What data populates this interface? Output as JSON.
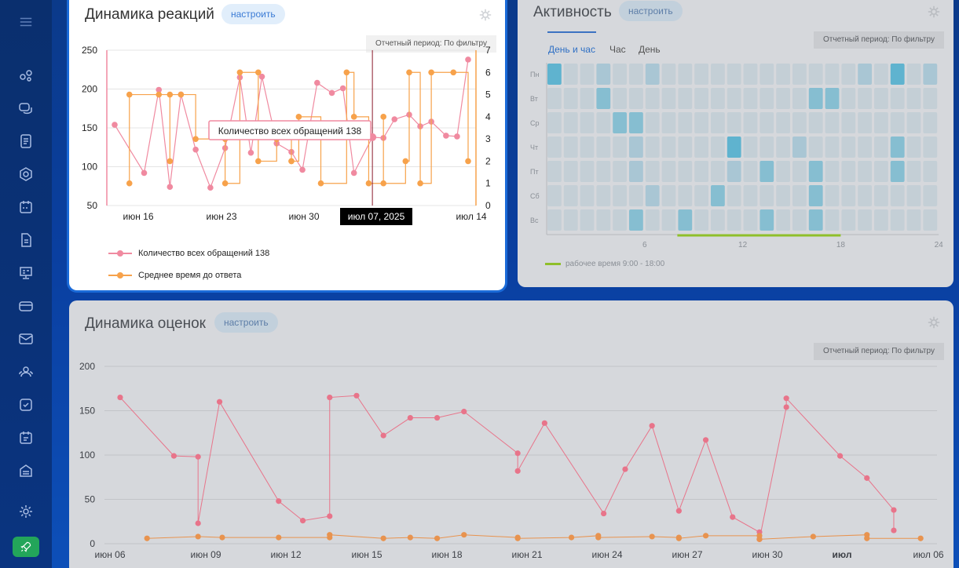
{
  "sidebar": {
    "items": [
      {
        "icon": "menu-icon"
      },
      {
        "icon": "pipeline-icon"
      },
      {
        "icon": "chat-icon"
      },
      {
        "icon": "document-icon"
      },
      {
        "icon": "hexagon-icon"
      },
      {
        "icon": "calendar-icon"
      },
      {
        "icon": "file-icon"
      },
      {
        "icon": "presentation-icon"
      },
      {
        "icon": "card-icon"
      },
      {
        "icon": "mail-icon"
      },
      {
        "icon": "users-icon"
      },
      {
        "icon": "checkbox-icon"
      },
      {
        "icon": "schedule-icon"
      },
      {
        "icon": "warehouse-icon"
      },
      {
        "icon": "settings-icon"
      },
      {
        "icon": "rocket-icon"
      }
    ]
  },
  "reactions": {
    "title": "Динамика реакций",
    "config_label": "настроить",
    "period_label": "Отчетный период: По фильтру",
    "tooltip_text": "Количество всех обращений 138",
    "cursor_label": "июл 07, 2025",
    "legend": [
      "Количество всех обращений  138",
      "Среднее время до ответа"
    ],
    "colors": {
      "count": "#f08aa0",
      "avg": "#f7a24b"
    },
    "chart_data": {
      "type": "line",
      "x_labels": [
        "июн 16",
        "июн 23",
        "июн 30",
        "июл 14"
      ],
      "y_left": {
        "ticks": [
          50,
          100,
          150,
          200,
          250
        ],
        "range": [
          50,
          250
        ]
      },
      "y_right": {
        "ticks": [
          0,
          1,
          2,
          3,
          4,
          5,
          6,
          7
        ],
        "range": [
          0,
          7
        ]
      },
      "series": [
        {
          "name": "Количество всех обращений  138",
          "axis": "left",
          "points": [
            [
              0,
              154
            ],
            [
              0.8,
              92
            ],
            [
              1.2,
              199
            ],
            [
              1.5,
              74
            ],
            [
              1.8,
              193
            ],
            [
              2.2,
              122
            ],
            [
              2.6,
              73
            ],
            [
              3.0,
              124
            ],
            [
              3.4,
              215
            ],
            [
              3.7,
              118
            ],
            [
              4.0,
              216
            ],
            [
              4.4,
              130
            ],
            [
              4.8,
              119
            ],
            [
              5.1,
              96
            ],
            [
              5.5,
              208
            ],
            [
              5.9,
              195
            ],
            [
              6.2,
              201
            ],
            [
              6.5,
              92
            ],
            [
              7.0,
              138
            ],
            [
              7.3,
              137
            ],
            [
              7.6,
              161
            ],
            [
              8.0,
              167
            ],
            [
              8.3,
              152
            ],
            [
              8.6,
              158
            ],
            [
              9.0,
              140
            ],
            [
              9.3,
              139
            ],
            [
              9.6,
              238
            ]
          ]
        },
        {
          "name": "Среднее время до ответа",
          "axis": "right",
          "points": [
            [
              0.4,
              1
            ],
            [
              0.4,
              5
            ],
            [
              1.2,
              5
            ],
            [
              1.5,
              2
            ],
            [
              1.5,
              5
            ],
            [
              1.8,
              5
            ],
            [
              2.2,
              3
            ],
            [
              3.0,
              3
            ],
            [
              3.0,
              1
            ],
            [
              3.4,
              6
            ],
            [
              3.9,
              6
            ],
            [
              3.9,
              2
            ],
            [
              4.4,
              3
            ],
            [
              4.8,
              2
            ],
            [
              4.8,
              2
            ],
            [
              5.0,
              4
            ],
            [
              5.6,
              1
            ],
            [
              6.3,
              6
            ],
            [
              6.5,
              4
            ],
            [
              6.9,
              1
            ],
            [
              7.3,
              4
            ],
            [
              7.3,
              1
            ],
            [
              7.9,
              2
            ],
            [
              8.0,
              6
            ],
            [
              8.3,
              1
            ],
            [
              8.6,
              6
            ],
            [
              9.2,
              6
            ],
            [
              9.6,
              2
            ]
          ]
        }
      ]
    }
  },
  "activity": {
    "title": "Активность",
    "config_label": "настроить",
    "period_label": "Отчетный период: По фильтру",
    "tabs": [
      "День и час",
      "Час",
      "День"
    ],
    "days": [
      "Пн",
      "Вт",
      "Ср",
      "Чт",
      "Пт",
      "Сб",
      "Вс"
    ],
    "x_ticks": [
      6,
      12,
      18,
      24
    ],
    "legend": "рабочее время 9:00 - 18:00",
    "chart_data": {
      "type": "heatmap",
      "rows": [
        "Пн",
        "Вт",
        "Ср",
        "Чт",
        "Пт",
        "Сб",
        "Вс"
      ],
      "columns": 24,
      "values": [
        [
          3,
          0,
          0,
          1,
          0,
          0,
          1,
          0,
          0,
          0,
          0,
          0,
          0,
          0,
          0,
          0,
          0,
          0,
          0,
          1,
          0,
          3,
          0,
          1
        ],
        [
          0,
          0,
          0,
          2,
          0,
          0,
          0,
          0,
          0,
          0,
          0,
          0,
          0,
          0,
          0,
          0,
          2,
          2,
          0,
          0,
          0,
          0,
          0,
          0
        ],
        [
          0,
          0,
          0,
          0,
          2,
          2,
          0,
          0,
          0,
          0,
          0,
          0,
          0,
          0,
          0,
          0,
          0,
          0,
          0,
          0,
          0,
          0,
          0,
          0
        ],
        [
          0,
          0,
          0,
          0,
          0,
          1,
          0,
          0,
          0,
          0,
          0,
          3,
          0,
          0,
          0,
          1,
          0,
          0,
          0,
          0,
          0,
          2,
          0,
          0
        ],
        [
          0,
          0,
          0,
          0,
          0,
          1,
          0,
          0,
          0,
          0,
          0,
          1,
          0,
          2,
          0,
          0,
          2,
          0,
          0,
          0,
          0,
          2,
          0,
          0
        ],
        [
          0,
          0,
          0,
          0,
          0,
          0,
          1,
          0,
          0,
          0,
          2,
          0,
          0,
          0,
          0,
          0,
          2,
          0,
          0,
          0,
          0,
          0,
          0,
          0
        ],
        [
          0,
          0,
          0,
          0,
          0,
          2,
          0,
          0,
          2,
          0,
          0,
          0,
          0,
          2,
          0,
          0,
          2,
          0,
          0,
          0,
          0,
          0,
          0,
          0
        ]
      ]
    }
  },
  "ratings": {
    "title": "Динамика оценок",
    "config_label": "настроить",
    "period_label": "Отчетный период: По фильтру",
    "chart_data": {
      "type": "line",
      "x_labels": [
        "июн 06",
        "июн 09",
        "июн 12",
        "июн 15",
        "июн 18",
        "июн 21",
        "июн 24",
        "июн 27",
        "июн 30",
        "июл",
        "июл 06"
      ],
      "bold_label": "июл",
      "y": {
        "ticks": [
          0,
          50,
          100,
          150,
          200
        ],
        "range": [
          0,
          200
        ]
      },
      "series": [
        {
          "name": "",
          "color": "#e8748a",
          "points": [
            [
              0,
              165
            ],
            [
              2.0,
              99
            ],
            [
              2.9,
              98
            ],
            [
              2.9,
              23
            ],
            [
              3.7,
              160
            ],
            [
              5.9,
              48
            ],
            [
              6.8,
              26
            ],
            [
              7.8,
              31
            ],
            [
              7.8,
              165
            ],
            [
              8.8,
              167
            ],
            [
              9.8,
              122
            ],
            [
              10.8,
              142
            ],
            [
              11.8,
              142
            ],
            [
              12.8,
              149
            ],
            [
              14.8,
              102
            ],
            [
              14.8,
              82
            ],
            [
              15.8,
              136
            ],
            [
              18.0,
              34
            ],
            [
              18.8,
              84
            ],
            [
              19.8,
              133
            ],
            [
              20.8,
              37
            ],
            [
              21.8,
              117
            ],
            [
              22.8,
              30
            ],
            [
              23.8,
              13
            ],
            [
              23.8,
              5
            ],
            [
              24.8,
              154
            ],
            [
              24.8,
              164
            ],
            [
              26.8,
              99
            ],
            [
              27.8,
              74
            ],
            [
              28.8,
              38
            ],
            [
              28.8,
              15
            ]
          ]
        },
        {
          "name": "",
          "color": "#e8934f",
          "points": [
            [
              1.0,
              6
            ],
            [
              2.9,
              8
            ],
            [
              3.8,
              7
            ],
            [
              5.9,
              7
            ],
            [
              7.8,
              7
            ],
            [
              7.8,
              10
            ],
            [
              9.8,
              6
            ],
            [
              10.8,
              7
            ],
            [
              11.8,
              6
            ],
            [
              12.8,
              10
            ],
            [
              14.8,
              7
            ],
            [
              14.8,
              6
            ],
            [
              16.8,
              7
            ],
            [
              17.8,
              9
            ],
            [
              17.8,
              7
            ],
            [
              19.8,
              8
            ],
            [
              20.8,
              7
            ],
            [
              20.8,
              6
            ],
            [
              21.8,
              9
            ],
            [
              23.8,
              9
            ],
            [
              23.8,
              5
            ],
            [
              25.8,
              8
            ],
            [
              27.8,
              10
            ],
            [
              27.8,
              6
            ],
            [
              29.8,
              6
            ]
          ]
        }
      ]
    }
  }
}
